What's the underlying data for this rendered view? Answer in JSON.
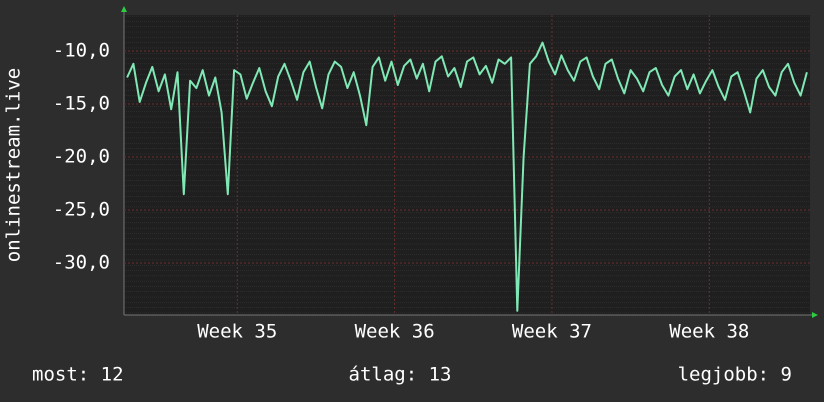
{
  "chart_data": {
    "type": "line",
    "y_label": "onlinestream.live",
    "xlim": [
      34.28,
      38.64
    ],
    "xticks": [
      {
        "value": 35,
        "label": "Week 35"
      },
      {
        "value": 36,
        "label": "Week 36"
      },
      {
        "value": 37,
        "label": "Week 37"
      },
      {
        "value": 38,
        "label": "Week 38"
      }
    ],
    "ylim": [
      -34.9,
      -6.6
    ],
    "yticks": [
      {
        "value": -10,
        "label": "-10,0"
      },
      {
        "value": -15,
        "label": "-15,0"
      },
      {
        "value": -20,
        "label": "-20,0"
      },
      {
        "value": -25,
        "label": "-25,0"
      },
      {
        "value": -30,
        "label": "-30,0"
      }
    ],
    "grid": true,
    "x": [
      34.3,
      34.34,
      34.38,
      34.42,
      34.46,
      34.5,
      34.54,
      34.58,
      34.62,
      34.66,
      34.7,
      34.74,
      34.78,
      34.82,
      34.86,
      34.9,
      34.94,
      34.98,
      35.02,
      35.06,
      35.1,
      35.14,
      35.18,
      35.22,
      35.26,
      35.3,
      35.34,
      35.38,
      35.42,
      35.46,
      35.5,
      35.54,
      35.58,
      35.62,
      35.66,
      35.7,
      35.74,
      35.78,
      35.82,
      35.86,
      35.9,
      35.94,
      35.98,
      36.02,
      36.06,
      36.1,
      36.14,
      36.18,
      36.22,
      36.26,
      36.3,
      36.34,
      36.38,
      36.42,
      36.46,
      36.5,
      36.54,
      36.58,
      36.62,
      36.66,
      36.7,
      36.74,
      36.78,
      36.82,
      36.86,
      36.9,
      36.94,
      36.98,
      37.02,
      37.06,
      37.1,
      37.14,
      37.18,
      37.22,
      37.26,
      37.3,
      37.34,
      37.38,
      37.42,
      37.46,
      37.5,
      37.54,
      37.58,
      37.62,
      37.66,
      37.7,
      37.74,
      37.78,
      37.82,
      37.86,
      37.9,
      37.94,
      37.98,
      38.02,
      38.06,
      38.1,
      38.14,
      38.18,
      38.22,
      38.26,
      38.3,
      38.34,
      38.38,
      38.42,
      38.46,
      38.5,
      38.54,
      38.58,
      38.62
    ],
    "series": [
      {
        "color": "#7fe8b4",
        "values": [
          -12.5,
          -11.2,
          -14.8,
          -13.0,
          -11.5,
          -13.8,
          -12.2,
          -15.5,
          -12.0,
          -23.5,
          -12.8,
          -13.5,
          -11.8,
          -14.2,
          -12.5,
          -15.8,
          -23.5,
          -11.8,
          -12.2,
          -14.5,
          -13.0,
          -11.6,
          -13.8,
          -15.2,
          -12.4,
          -11.2,
          -12.8,
          -14.6,
          -12.0,
          -11.0,
          -13.4,
          -15.4,
          -12.2,
          -11.0,
          -11.5,
          -13.5,
          -12.0,
          -14.2,
          -17.0,
          -11.5,
          -10.6,
          -12.8,
          -11.0,
          -13.2,
          -11.4,
          -10.8,
          -12.6,
          -11.2,
          -13.8,
          -11.0,
          -10.5,
          -12.4,
          -11.6,
          -13.4,
          -11.0,
          -10.6,
          -12.2,
          -11.4,
          -13.0,
          -10.8,
          -11.2,
          -10.6,
          -34.5,
          -20.0,
          -11.2,
          -10.5,
          -9.2,
          -11.0,
          -12.2,
          -10.4,
          -11.8,
          -12.8,
          -11.0,
          -10.6,
          -12.4,
          -13.6,
          -11.2,
          -10.8,
          -12.6,
          -14.0,
          -11.8,
          -12.6,
          -13.8,
          -12.0,
          -11.6,
          -13.2,
          -14.2,
          -12.4,
          -11.8,
          -13.6,
          -12.2,
          -14.0,
          -12.8,
          -11.8,
          -13.4,
          -14.6,
          -12.4,
          -12.0,
          -13.8,
          -15.8,
          -12.6,
          -11.8,
          -13.4,
          -14.2,
          -12.0,
          -11.2,
          -13.0,
          -14.2,
          -12.0
        ]
      }
    ],
    "stats": [
      "most: 12",
      "átlag: 13",
      "legjobb: 9"
    ]
  }
}
